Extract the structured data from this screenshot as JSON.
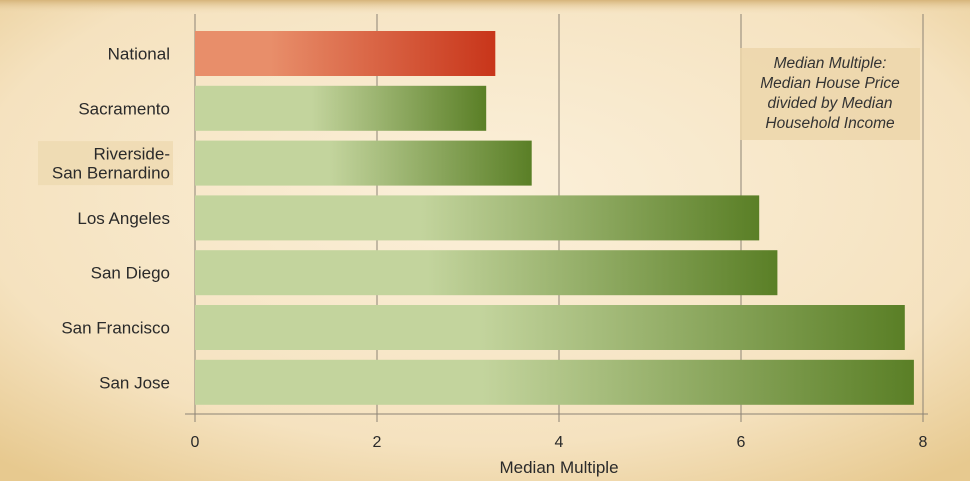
{
  "chart_data": {
    "type": "bar",
    "orientation": "horizontal",
    "categories": [
      "National",
      "Sacramento",
      "Riverside-\nSan Bernardino",
      "Los Angeles",
      "San Diego",
      "San Francisco",
      "San Jose"
    ],
    "values": [
      3.3,
      3.2,
      3.7,
      6.2,
      6.4,
      7.8,
      7.9
    ],
    "highlight_category": "National",
    "xlabel": "Median Multiple",
    "ylabel": "",
    "xlim": [
      0,
      8
    ],
    "xticks": [
      "0",
      "2",
      "4",
      "6",
      "8"
    ],
    "grid": "vertical",
    "annotation": "Median Multiple:\nMedian House Price\ndivided by Median\nHousehold Income",
    "colors": {
      "highlight_dark": "#c8351a",
      "highlight_light": "#e88e6a",
      "bar_dark": "#5a7f26",
      "bar_light": "#c3d49d",
      "grid": "#8c8375",
      "background": "#f7e7c9"
    }
  }
}
